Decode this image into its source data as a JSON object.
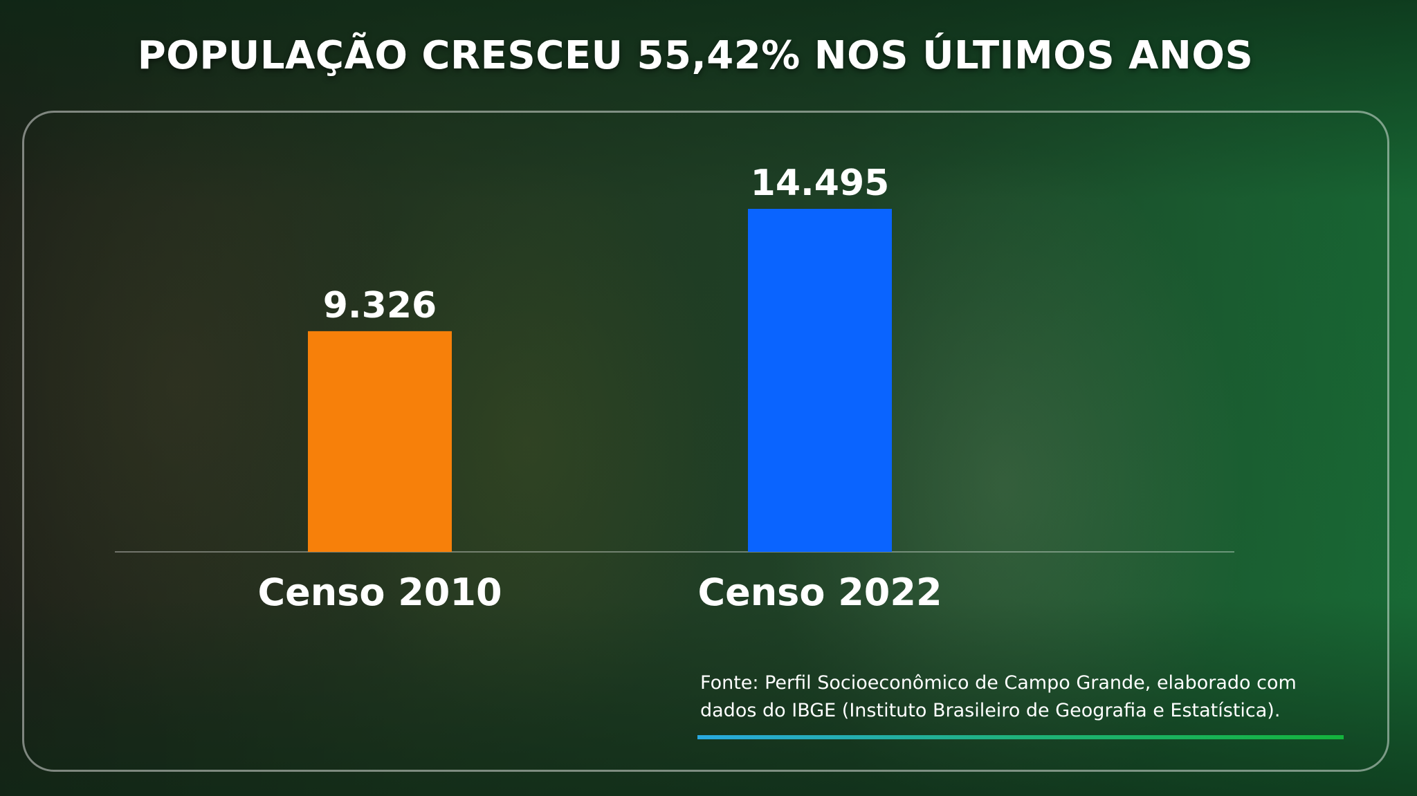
{
  "title": "POPULAÇÃO CRESCEU 55,42% NOS ÚLTIMOS ANOS",
  "source_text": "Fonte: Perfil Socioeconômico de Campo Grande, elaborado com dados do IBGE (Instituto Brasileiro de Geografia e Estatística).",
  "colors": {
    "bar_2010": "#f7800a",
    "bar_2022": "#0a64ff",
    "text": "#ffffff"
  },
  "chart_data": {
    "type": "bar",
    "title": "POPULAÇÃO CRESCEU 55,42% NOS ÚLTIMOS ANOS",
    "categories": [
      "Censo 2010",
      "Censo 2022"
    ],
    "values": [
      9326,
      14495
    ],
    "data_labels": [
      "9.326",
      "14.495"
    ],
    "bar_colors": [
      "#f7800a",
      "#0a64ff"
    ],
    "xlabel": "",
    "ylabel": "",
    "ylim": [
      0,
      14495
    ],
    "grid": false,
    "legend": "none"
  }
}
